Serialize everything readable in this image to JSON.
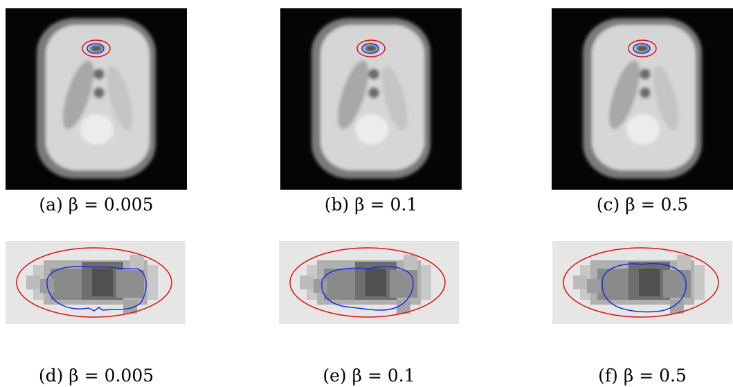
{
  "figure": {
    "captions": [
      "(a) β = 0.005",
      "(b) β = 0.1",
      "(c) β = 0.5",
      "(d) β = 0.005",
      "(e) β = 0.1",
      "(f) β = 0.5"
    ]
  }
}
